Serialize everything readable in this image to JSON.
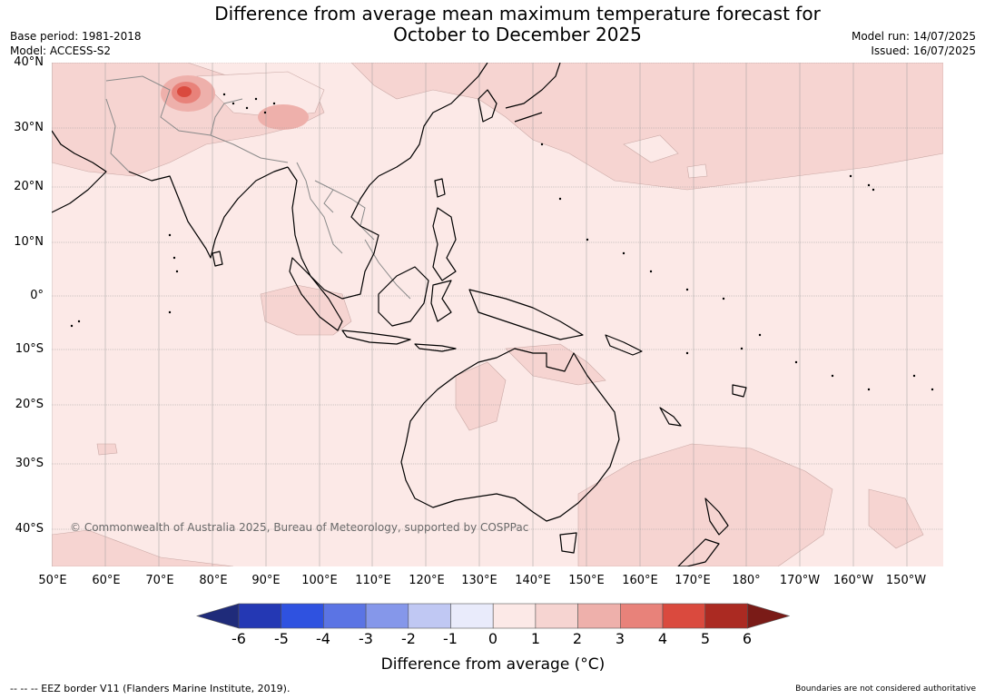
{
  "title": {
    "line1": "Difference from average mean maximum temperature forecast for",
    "line2": "October to December 2025"
  },
  "meta": {
    "base_period": "Base period: 1981-2018",
    "model": "Model: ACCESS-S2",
    "model_run": "Model run: 14/07/2025",
    "issued": "Issued: 16/07/2025"
  },
  "map": {
    "latitude_labels": [
      "40°N",
      "30°N",
      "20°N",
      "10°N",
      "0°",
      "10°S",
      "20°S",
      "30°S",
      "40°S"
    ],
    "longitude_labels": [
      "50°E",
      "60°E",
      "70°E",
      "80°E",
      "90°E",
      "100°E",
      "110°E",
      "120°E",
      "130°E",
      "140°E",
      "150°E",
      "160°E",
      "170°E",
      "180°",
      "170°W",
      "160°W",
      "150°W"
    ],
    "copyright": "© Commonwealth of Australia 2025, Bureau of Meteorology, supported by COSPPac",
    "base_color": "#fce9e7",
    "anomaly_color": "#f6d4d1",
    "hotspot_color": "#e06a5f",
    "coast_color": "#000000",
    "border_color": "#8a8a8a"
  },
  "colorbar": {
    "ticks": [
      "-6",
      "-5",
      "-4",
      "-3",
      "-2",
      "-1",
      "0",
      "1",
      "2",
      "3",
      "4",
      "5",
      "6"
    ],
    "colors": [
      "#1f2b7a",
      "#2438b4",
      "#2f52e0",
      "#5b74e4",
      "#8597ea",
      "#c0c8f3",
      "#e9ebfb",
      "#fce9e7",
      "#f6d4d1",
      "#eeb0ab",
      "#e8827a",
      "#da4a3e",
      "#ab2a22",
      "#7a1b17"
    ],
    "label": "Difference from average (°C)"
  },
  "footer": {
    "eez": "--  --  -- EEZ border V11 (Flanders Marine Institute, 2019).",
    "disclaimer": "Boundaries are not considered authoritative"
  }
}
